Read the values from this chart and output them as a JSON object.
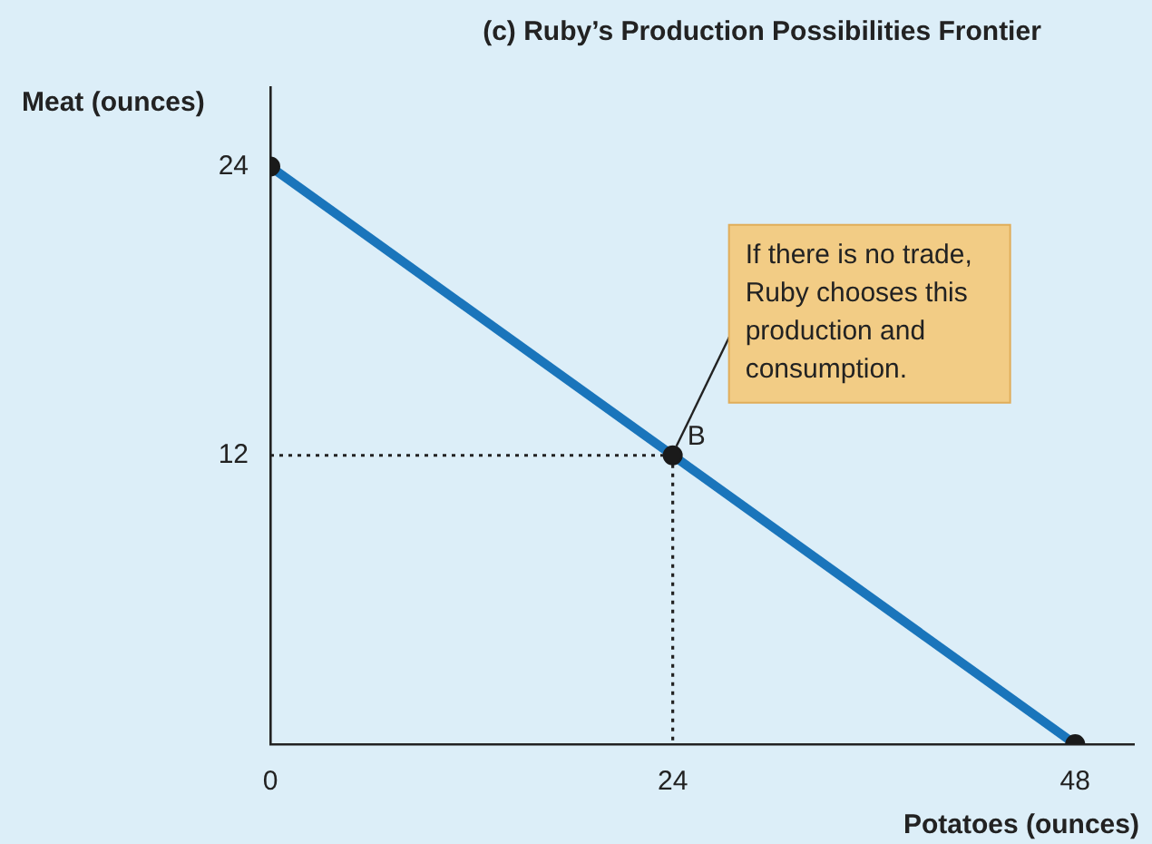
{
  "chart_data": {
    "type": "line",
    "title": "(c) Ruby’s Production Possibilities Frontier",
    "xlabel": "Potatoes (ounces)",
    "ylabel": "Meat (ounces)",
    "xlim": [
      0,
      51.5
    ],
    "ylim": [
      0,
      27.3
    ],
    "xticks": [
      0,
      24,
      48
    ],
    "yticks": [
      12,
      24
    ],
    "grid": false,
    "legend": false,
    "series": [
      {
        "color": "#1a75bb",
        "x": [
          0,
          48
        ],
        "values": [
          24,
          0
        ],
        "marker": "none",
        "line_style": "solid"
      },
      {
        "color": "#222222",
        "x": [
          0,
          24
        ],
        "values": [
          12,
          12
        ],
        "marker": "none",
        "line_style": "dotted"
      },
      {
        "color": "#222222",
        "x": [
          24,
          24
        ],
        "values": [
          12,
          0
        ],
        "marker": "none",
        "line_style": "dotted"
      },
      {
        "type": "scatter",
        "color": "#1a1a1a",
        "x": [
          0,
          24,
          48
        ],
        "values": [
          24,
          12,
          0
        ],
        "marker": "circle"
      }
    ],
    "annotations": [
      {
        "text": "B",
        "x": 24,
        "y": 12
      },
      {
        "text": "If there is no trade, Ruby chooses this production and consumption.",
        "x": 24,
        "y": 12
      }
    ]
  }
}
